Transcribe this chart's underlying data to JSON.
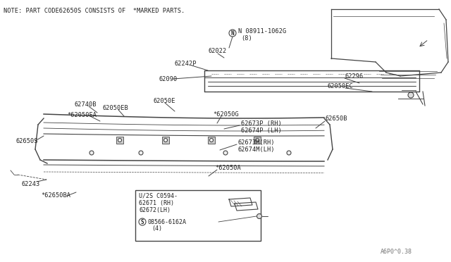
{
  "note_text": "NOTE: PART CODE62650S CONSISTS OF  *MARKED PARTS.",
  "background_color": "#ffffff",
  "line_color": "#444444",
  "text_color": "#222222",
  "fig_width": 6.4,
  "fig_height": 3.72,
  "dpi": 100,
  "watermark": "A6P0^0.38",
  "labels": {
    "n_nut_1": "N 08911-1062G",
    "n_nut_2": "(8)",
    "l62022": "62022",
    "l62242P": "62242P",
    "l62090": "62090",
    "l62296": "62296",
    "l62050EC": "62050EC",
    "l62740B": "62740B",
    "l62050EA": "*62050EA",
    "l62050EB": "62050EB",
    "l62050E": "62050E",
    "l62050G": "*62050G",
    "l62673P": "62673P (RH)",
    "l62674P": "62674P (LH)",
    "l62673M": "62673M(RH)",
    "l62674M": "62674M(LH)",
    "l62050A": "*62050A",
    "l62650B": "62650B",
    "l62650S": "62650S",
    "l62243": "62243",
    "l62650BA": "*62650BA",
    "box_title": "U/2S C0594-",
    "l62671": "62671 (RH)",
    "l62672": "62672(LH)",
    "s_circle": "S",
    "s_bolt": "08566-6162A",
    "s_bolt_count": "(4)"
  }
}
